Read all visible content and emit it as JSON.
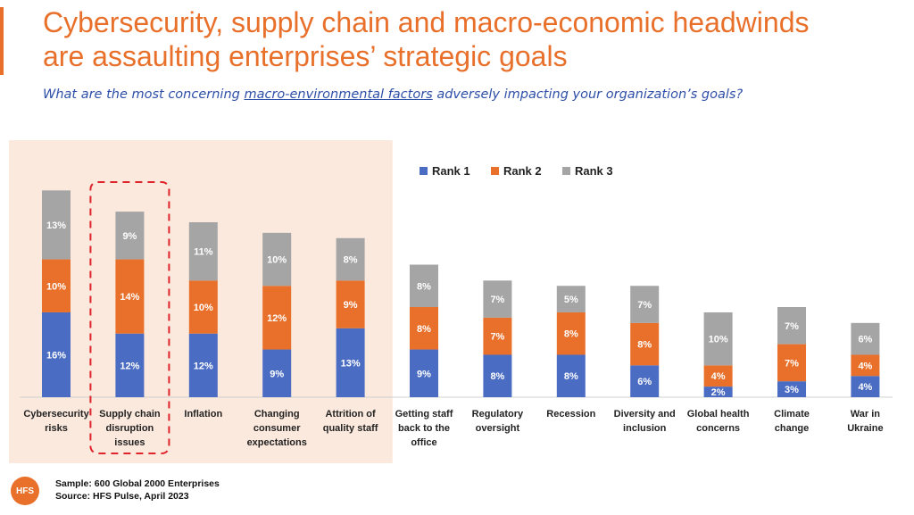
{
  "header": {
    "title": "Cybersecurity, supply chain and macro-economic headwinds\nare assaulting enterprises’ strategic goals",
    "subtitle_pre": "What are the most concerning ",
    "subtitle_highlight": "macro-environmental factors",
    "subtitle_post": " adversely impacting your organization’s goals?"
  },
  "colors": {
    "accent": "#E8702A",
    "rank1": "#4A6CC2",
    "rank2": "#E8702A",
    "rank3": "#A5A5A5",
    "highlight_panel": "#FBE9DD",
    "highlight_dash": "#E0242B"
  },
  "chart_data": {
    "type": "bar",
    "stacked": true,
    "categories": [
      "Cybersecurity\nrisks",
      "Supply chain\ndisruption\nissues",
      "Inflation",
      "Changing\nconsumer\nexpectations",
      "Attrition of\nquality staff",
      "Getting staff\nback to the\noffice",
      "Regulatory\noversight",
      "Recession",
      "Diversity and\ninclusion",
      "Global health\nconcerns",
      "Climate\nchange",
      "War in\nUkraine"
    ],
    "series": [
      {
        "name": "Rank 1",
        "values": [
          16,
          12,
          12,
          9,
          13,
          9,
          8,
          8,
          6,
          2,
          3,
          4
        ]
      },
      {
        "name": "Rank 2",
        "values": [
          10,
          14,
          10,
          12,
          9,
          8,
          7,
          8,
          8,
          4,
          7,
          4
        ]
      },
      {
        "name": "Rank 3",
        "values": [
          13,
          9,
          11,
          10,
          8,
          8,
          7,
          5,
          7,
          10,
          7,
          6
        ]
      }
    ],
    "value_suffix": "%",
    "legend_position": "top-right",
    "highlighted_group": {
      "category_count": 5
    },
    "highlighted_category": 1,
    "grid": false
  },
  "footer": {
    "logo": "HFS",
    "sample": "Sample: 600 Global 2000 Enterprises",
    "source": "Source: HFS Pulse, April 2023"
  }
}
